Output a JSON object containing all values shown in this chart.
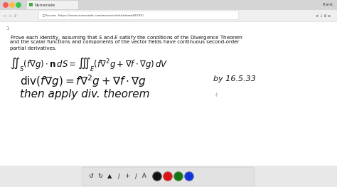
{
  "bg_color": "#dedede",
  "tab_bar_color": "#d0d0d0",
  "url_bar_color": "#f2f2f2",
  "page_bg": "#ffffff",
  "browser_title": "Numerade",
  "url": "https://www.numerade.com/answers/whiteboard/6735/",
  "frank": "Frank",
  "page_number": "1",
  "body_lines": [
    "Prove each identity, assuming that $S$ and $E$ satisfy the conditions of the Divergence Theorem",
    "and the scalar functions and components of the vector fields have continuous second-order",
    "partial derivatives."
  ],
  "formula": "$\\iint_S (f\\nabla g) \\cdot \\mathbf{n}\\, dS = \\iiint_E (f\\nabla^2 g + \\nabla f \\cdot \\nabla g)\\, dV$",
  "hw_line1": "$\\mathrm{div}(f\\nabla g) = f\\nabla^2 g + \\nabla f \\cdot \\nabla g$",
  "hw_note": "by 16.5.33",
  "hw_line2": "then apply div. theorem",
  "toolbar_bg": "#e0e0e0",
  "dot_colors": [
    "#111111",
    "#dd1111",
    "#117711",
    "#1133dd"
  ],
  "traffic_colors": [
    "#fc5753",
    "#fdbc40",
    "#34c84a"
  ],
  "text_color": "#111111"
}
